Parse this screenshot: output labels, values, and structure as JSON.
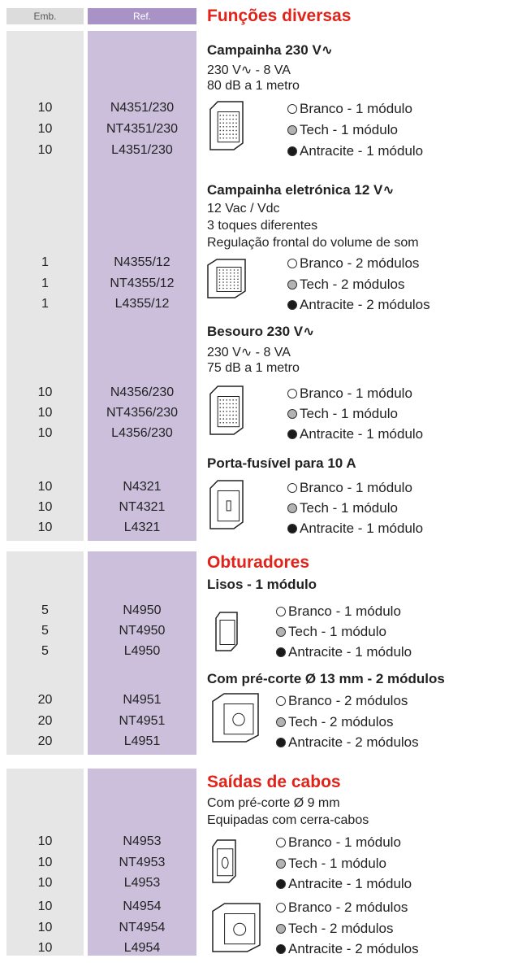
{
  "header": {
    "emb": "Emb.",
    "ref": "Ref."
  },
  "sections": [
    {
      "title": "Funções diversas",
      "groups": [
        {
          "name": "Campainha  230 V∿",
          "description": [
            "230 V∿ - 8 VA",
            "80 dB a 1 metro"
          ],
          "items": [
            {
              "emb": 10,
              "ref": "N4351/230",
              "finish": "Branco - 1 módulo"
            },
            {
              "emb": 10,
              "ref": "NT4351/230",
              "finish": "Tech - 1 módulo"
            },
            {
              "emb": 10,
              "ref": "L4351/230",
              "finish": "Antracite - 1 módulo"
            }
          ]
        },
        {
          "name": "Campainha eletrónica 12 V∿",
          "description": [
            "12 Vac / Vdc",
            "3 toques diferentes",
            "Regulação frontal do volume de som"
          ],
          "items": [
            {
              "emb": 1,
              "ref": "N4355/12",
              "finish": "Branco - 2 módulos"
            },
            {
              "emb": 1,
              "ref": "NT4355/12",
              "finish": "Tech - 2 módulos"
            },
            {
              "emb": 1,
              "ref": "L4355/12",
              "finish": "Antracite - 2 módulos"
            }
          ]
        },
        {
          "name": "Besouro 230 V∿",
          "description": [
            "230 V∿ - 8 VA",
            "75 dB a 1 metro"
          ],
          "items": [
            {
              "emb": 10,
              "ref": "N4356/230",
              "finish": "Branco - 1 módulo"
            },
            {
              "emb": 10,
              "ref": "NT4356/230",
              "finish": "Tech - 1 módulo"
            },
            {
              "emb": 10,
              "ref": "L4356/230",
              "finish": "Antracite - 1 módulo"
            }
          ]
        },
        {
          "name": "Porta-fusível para 10 A",
          "items": [
            {
              "emb": 10,
              "ref": "N4321",
              "finish": "Branco - 1 módulo"
            },
            {
              "emb": 10,
              "ref": "NT4321",
              "finish": "Tech - 1 módulo"
            },
            {
              "emb": 10,
              "ref": "L4321",
              "finish": "Antracite - 1 módulo"
            }
          ]
        }
      ]
    },
    {
      "title": "Obturadores",
      "groups": [
        {
          "name": "Lisos - 1 módulo",
          "items": [
            {
              "emb": 5,
              "ref": "N4950",
              "finish": "Branco - 1 módulo"
            },
            {
              "emb": 5,
              "ref": "NT4950",
              "finish": "Tech - 1 módulo"
            },
            {
              "emb": 5,
              "ref": "L4950",
              "finish": "Antracite - 1 módulo"
            }
          ]
        },
        {
          "name": "Com pré-corte Ø 13 mm - 2 módulos",
          "items": [
            {
              "emb": 20,
              "ref": "N4951",
              "finish": "Branco - 2 módulos"
            },
            {
              "emb": 20,
              "ref": "NT4951",
              "finish": "Tech - 2 módulos"
            },
            {
              "emb": 20,
              "ref": "L4951",
              "finish": "Antracite - 2 módulos"
            }
          ]
        }
      ]
    },
    {
      "title": "Saídas de cabos",
      "groups": [
        {
          "description": [
            "Com pré-corte Ø 9 mm",
            "Equipadas com cerra-cabos"
          ],
          "items": [
            {
              "emb": 10,
              "ref": "N4953",
              "finish": "Branco - 1 módulo"
            },
            {
              "emb": 10,
              "ref": "NT4953",
              "finish": "Tech - 1 módulo"
            },
            {
              "emb": 10,
              "ref": "L4953",
              "finish": "Antracite - 1 módulo"
            }
          ]
        },
        {
          "items": [
            {
              "emb": 10,
              "ref": "N4954",
              "finish": "Branco - 2 módulos"
            },
            {
              "emb": 10,
              "ref": "NT4954",
              "finish": "Tech - 2 módulos"
            },
            {
              "emb": 10,
              "ref": "L4954",
              "finish": "Antracite - 2 módulos"
            }
          ]
        }
      ]
    }
  ]
}
